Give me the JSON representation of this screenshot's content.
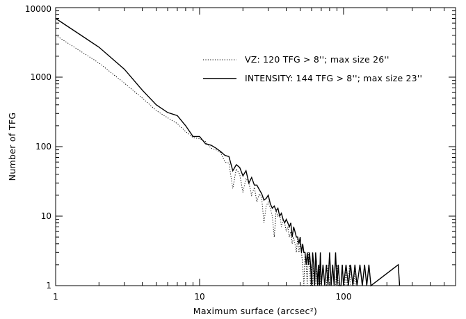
{
  "chart_data": {
    "type": "line",
    "title": "",
    "xlabel": "Maximum surface (arcsec²)",
    "ylabel": "Number of TFG",
    "xscale": "log",
    "yscale": "log",
    "xlim": [
      1,
      600
    ],
    "ylim": [
      1,
      10000
    ],
    "grid": false,
    "legend_position": "top-right",
    "x_tick_labels": [
      "1",
      "10",
      "100"
    ],
    "y_tick_labels": [
      "1",
      "10",
      "100",
      "1000",
      "10000"
    ],
    "series": [
      {
        "name": "VZ: 120 TFG > 8''; max size 26''",
        "style": "dotted",
        "color": "#000000",
        "points": [
          [
            1,
            4000
          ],
          [
            2,
            1600
          ],
          [
            3,
            820
          ],
          [
            4,
            500
          ],
          [
            5,
            330
          ],
          [
            6,
            260
          ],
          [
            7,
            215
          ],
          [
            8,
            165
          ],
          [
            9,
            135
          ],
          [
            10,
            130
          ],
          [
            11,
            118
          ],
          [
            12,
            95
          ],
          [
            13,
            90
          ],
          [
            14,
            82
          ],
          [
            15,
            60
          ],
          [
            16,
            58
          ],
          [
            17,
            25
          ],
          [
            18,
            48
          ],
          [
            19,
            40
          ],
          [
            20,
            22
          ],
          [
            21,
            35
          ],
          [
            22,
            30
          ],
          [
            23,
            20
          ],
          [
            24,
            26
          ],
          [
            25,
            16
          ],
          [
            26,
            21
          ],
          [
            27,
            18
          ],
          [
            28,
            8
          ],
          [
            29,
            14
          ],
          [
            30,
            16
          ],
          [
            31,
            13
          ],
          [
            32,
            10
          ],
          [
            33,
            5
          ],
          [
            34,
            12
          ],
          [
            35,
            10
          ],
          [
            36,
            11
          ],
          [
            37,
            7
          ],
          [
            38,
            9
          ],
          [
            39,
            8
          ],
          [
            40,
            6
          ],
          [
            41,
            7
          ],
          [
            42,
            5
          ],
          [
            43,
            6
          ],
          [
            44,
            4
          ],
          [
            45,
            5
          ],
          [
            46,
            4
          ],
          [
            47,
            3
          ],
          [
            48,
            5
          ],
          [
            49,
            3
          ],
          [
            50,
            4
          ],
          [
            51,
            3
          ],
          [
            52,
            2
          ],
          [
            53,
            1
          ],
          [
            54,
            3
          ],
          [
            55,
            2
          ],
          [
            56,
            1
          ],
          [
            57,
            3
          ],
          [
            58,
            2
          ],
          [
            59,
            1
          ],
          [
            60,
            2
          ],
          [
            61,
            1
          ],
          [
            62,
            2
          ],
          [
            63,
            1
          ],
          [
            64,
            1
          ],
          [
            65,
            2
          ],
          [
            66,
            1
          ],
          [
            67,
            1
          ],
          [
            68,
            2
          ],
          [
            69,
            1
          ],
          [
            70,
            1
          ],
          [
            72,
            2
          ],
          [
            74,
            1
          ],
          [
            76,
            1
          ],
          [
            78,
            2
          ],
          [
            80,
            1
          ],
          [
            82,
            1
          ],
          [
            84,
            2
          ],
          [
            86,
            1
          ],
          [
            88,
            1
          ],
          [
            90,
            2
          ],
          [
            92,
            1
          ],
          [
            94,
            1
          ],
          [
            96,
            1
          ],
          [
            98,
            2
          ],
          [
            100,
            1
          ],
          [
            102,
            1
          ],
          [
            104,
            2
          ],
          [
            106,
            1
          ],
          [
            108,
            1
          ],
          [
            110,
            2
          ],
          [
            112,
            1
          ],
          [
            114,
            1
          ],
          [
            116,
            1
          ],
          [
            118,
            1
          ],
          [
            120,
            2
          ],
          [
            122,
            1
          ],
          [
            130,
            1
          ],
          [
            145,
            1
          ],
          [
            150,
            2
          ],
          [
            155,
            1
          ],
          [
            240,
            2
          ],
          [
            245,
            1
          ]
        ]
      },
      {
        "name": "INTENSITY: 144 TFG > 8''; max size 23''",
        "style": "solid",
        "color": "#000000",
        "points": [
          [
            1,
            7000
          ],
          [
            2,
            2700
          ],
          [
            3,
            1300
          ],
          [
            4,
            650
          ],
          [
            5,
            400
          ],
          [
            6,
            310
          ],
          [
            7,
            280
          ],
          [
            8,
            200
          ],
          [
            9,
            140
          ],
          [
            10,
            140
          ],
          [
            11,
            110
          ],
          [
            12,
            105
          ],
          [
            13,
            95
          ],
          [
            14,
            85
          ],
          [
            15,
            75
          ],
          [
            16,
            72
          ],
          [
            17,
            45
          ],
          [
            18,
            55
          ],
          [
            19,
            50
          ],
          [
            20,
            38
          ],
          [
            21,
            45
          ],
          [
            22,
            30
          ],
          [
            23,
            36
          ],
          [
            24,
            28
          ],
          [
            25,
            28
          ],
          [
            26,
            24
          ],
          [
            27,
            21
          ],
          [
            28,
            17
          ],
          [
            29,
            18
          ],
          [
            30,
            20
          ],
          [
            31,
            15
          ],
          [
            32,
            13
          ],
          [
            33,
            14
          ],
          [
            34,
            12
          ],
          [
            35,
            13
          ],
          [
            36,
            10
          ],
          [
            37,
            11
          ],
          [
            38,
            9
          ],
          [
            39,
            8
          ],
          [
            40,
            9
          ],
          [
            41,
            8
          ],
          [
            42,
            7
          ],
          [
            43,
            8
          ],
          [
            44,
            5
          ],
          [
            45,
            7
          ],
          [
            46,
            6
          ],
          [
            47,
            5
          ],
          [
            48,
            5
          ],
          [
            49,
            4
          ],
          [
            50,
            5
          ],
          [
            51,
            3
          ],
          [
            52,
            4
          ],
          [
            53,
            3
          ],
          [
            54,
            3
          ],
          [
            55,
            2
          ],
          [
            56,
            3
          ],
          [
            57,
            2
          ],
          [
            58,
            3
          ],
          [
            59,
            2
          ],
          [
            60,
            1
          ],
          [
            61,
            3
          ],
          [
            62,
            2
          ],
          [
            63,
            1
          ],
          [
            64,
            3
          ],
          [
            65,
            2
          ],
          [
            66,
            1
          ],
          [
            67,
            2
          ],
          [
            68,
            1
          ],
          [
            69,
            3
          ],
          [
            70,
            1
          ],
          [
            72,
            2
          ],
          [
            74,
            1
          ],
          [
            76,
            2
          ],
          [
            78,
            1
          ],
          [
            80,
            3
          ],
          [
            82,
            1
          ],
          [
            84,
            2
          ],
          [
            86,
            1
          ],
          [
            88,
            3
          ],
          [
            90,
            1
          ],
          [
            92,
            2
          ],
          [
            94,
            1
          ],
          [
            96,
            1
          ],
          [
            98,
            2
          ],
          [
            100,
            1
          ],
          [
            104,
            2
          ],
          [
            108,
            1
          ],
          [
            112,
            2
          ],
          [
            116,
            1
          ],
          [
            120,
            2
          ],
          [
            124,
            1
          ],
          [
            130,
            2
          ],
          [
            135,
            1
          ],
          [
            140,
            2
          ],
          [
            145,
            1
          ],
          [
            150,
            2
          ],
          [
            155,
            1
          ],
          [
            240,
            2
          ],
          [
            245,
            1
          ]
        ]
      }
    ]
  }
}
